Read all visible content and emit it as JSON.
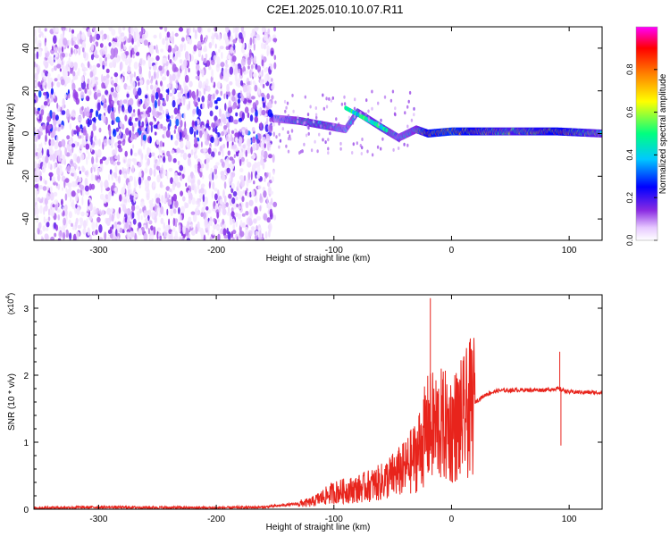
{
  "figure": {
    "title": "C2E1.2025.010.10.07.R11"
  },
  "colors": {
    "snr_line": "#e8241c",
    "spectrogram_base": "#6a00d6"
  },
  "chart_data": [
    {
      "type": "heatmap",
      "xlabel": "Height of straight line (km)",
      "ylabel": "Frequency (Hz)",
      "xlim": [
        -355,
        128
      ],
      "ylim": [
        -50,
        50
      ],
      "x_ticks": [
        -300,
        -200,
        -100,
        0,
        100
      ],
      "y_ticks": [
        -40,
        -20,
        0,
        20,
        40
      ],
      "colorbar": {
        "label": "Normalized spectral amplitude",
        "range": [
          0.0,
          1.0
        ],
        "ticks": [
          "0.0",
          "0.2",
          "0.4",
          "0.6",
          "0.8"
        ],
        "colormap": [
          "#ffffff",
          "#e6c8ff",
          "#8a2be2",
          "#0000ff",
          "#00c8ff",
          "#00ff80",
          "#ffff00",
          "#ff8000",
          "#ff0000",
          "#ff00ff"
        ]
      },
      "noise_region": {
        "x": [
          -355,
          -150
        ],
        "y": [
          -50,
          50
        ]
      },
      "dominant_trace": [
        {
          "x": -150,
          "y": 7,
          "amp": 0.35
        },
        {
          "x": -130,
          "y": 6,
          "amp": 0.5
        },
        {
          "x": -110,
          "y": 4,
          "amp": 0.55
        },
        {
          "x": -90,
          "y": 2,
          "amp": 0.4
        },
        {
          "x": -80,
          "y": 10,
          "amp": 0.5
        },
        {
          "x": -60,
          "y": 3,
          "amp": 0.55
        },
        {
          "x": -45,
          "y": -2,
          "amp": 0.45
        },
        {
          "x": -30,
          "y": 2,
          "amp": 0.5
        },
        {
          "x": -20,
          "y": 0,
          "amp": 0.75
        },
        {
          "x": 0,
          "y": 1,
          "amp": 0.8
        },
        {
          "x": 50,
          "y": 1,
          "amp": 0.6
        },
        {
          "x": 90,
          "y": 1,
          "amp": 0.75
        },
        {
          "x": 128,
          "y": 0,
          "amp": 0.55
        }
      ]
    },
    {
      "type": "line",
      "xlabel": "Height of straight line (km)",
      "ylabel": "SNR (10 * v/v)",
      "y_multiplier": "(x10",
      "y_multiplier_exp": "4",
      "y_multiplier_close": ")",
      "xlim": [
        -355,
        128
      ],
      "ylim": [
        0,
        3.2
      ],
      "x_ticks": [
        -300,
        -200,
        -100,
        0,
        100
      ],
      "y_ticks": [
        0,
        1,
        2,
        3
      ],
      "series": [
        {
          "x": [
            -355,
            -300,
            -200,
            -160,
            -120,
            -100,
            -80,
            -60,
            -40,
            -30,
            -20,
            -10,
            0,
            10,
            20,
            30,
            40,
            60,
            80,
            90,
            100,
            128
          ],
          "y": [
            0.02,
            0.03,
            0.02,
            0.03,
            0.1,
            0.25,
            0.3,
            0.4,
            0.6,
            0.8,
            1.2,
            1.25,
            1.2,
            1.35,
            1.6,
            1.72,
            1.77,
            1.78,
            1.78,
            1.8,
            1.75,
            1.74
          ]
        }
      ],
      "spikes": [
        {
          "x": -18,
          "y": 3.15
        },
        {
          "x": 10,
          "y": 2.0
        },
        {
          "x": 92,
          "y": 2.35
        },
        {
          "x": 93,
          "y": 0.95
        },
        {
          "x": 6,
          "y": 0.6
        }
      ]
    }
  ]
}
